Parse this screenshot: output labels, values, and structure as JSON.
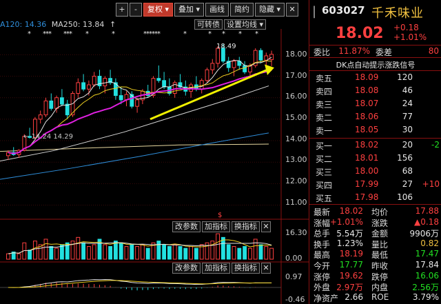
{
  "toolbar": {
    "buttons": [
      "+",
      "-",
      "复权",
      "叠加",
      "画线",
      "简约",
      "隐藏"
    ],
    "restore_label": "复权",
    "zoom_in": "+",
    "zoom_out": "-",
    "overlay_label": "叠加",
    "draw_label": "画线",
    "simple_label": "简约",
    "hide_label": "隐藏"
  },
  "ma_legend": {
    "ma120": "A120: 14.36",
    "ma250": "MA250: 13.84",
    "ma250_arrow": "↑"
  },
  "sub_buttons": {
    "turnover": "可转债",
    "set_ma": "设置均线"
  },
  "chart_labels": {
    "high_price": "18.49",
    "low_price": "14.29",
    "low_prefix": "←"
  },
  "price_axis": [
    "18.00",
    "17.00",
    "16.00",
    "15.00",
    "14.00",
    "13.00",
    "12.00",
    "11.00"
  ],
  "volume_axis": [
    "16.30",
    "0.00"
  ],
  "macd_axis": [
    "0.97",
    "-0.46"
  ],
  "panel_buttons": {
    "change_params": "改参数",
    "add_indicator": "加指标",
    "swap_indicator": "换指标",
    "close": "✕"
  },
  "stock": {
    "code": "603027",
    "name": "千禾味业",
    "price": "18.02",
    "change": "+0.18",
    "change_pct": "+1.01%"
  },
  "weibi": {
    "label": "委比",
    "value": "11.87%",
    "label2": "委差",
    "value2": "80"
  },
  "signal": "DK点自动提示涨跌信号",
  "order_book": {
    "asks": [
      {
        "label": "卖五",
        "price": "18.09",
        "vol": "120",
        "chg": ""
      },
      {
        "label": "卖四",
        "price": "18.08",
        "vol": "46",
        "chg": ""
      },
      {
        "label": "卖三",
        "price": "18.07",
        "vol": "24",
        "chg": ""
      },
      {
        "label": "卖二",
        "price": "18.06",
        "vol": "77",
        "chg": ""
      },
      {
        "label": "卖一",
        "price": "18.05",
        "vol": "30",
        "chg": ""
      }
    ],
    "bids": [
      {
        "label": "买一",
        "price": "18.02",
        "vol": "20",
        "chg": "-2"
      },
      {
        "label": "买二",
        "price": "18.01",
        "vol": "156",
        "chg": ""
      },
      {
        "label": "买三",
        "price": "18.00",
        "vol": "68",
        "chg": ""
      },
      {
        "label": "买四",
        "price": "17.99",
        "vol": "27",
        "chg": "+10"
      },
      {
        "label": "买五",
        "price": "17.98",
        "vol": "106",
        "chg": ""
      }
    ]
  },
  "stats": [
    {
      "l1": "最新",
      "v1": "18.02",
      "c1": "red",
      "l2": "均价",
      "v2": "17.88",
      "c2": "red"
    },
    {
      "l1": "涨幅",
      "v1": "+1.01%",
      "c1": "red",
      "l2": "涨跌",
      "v2": "▲0.18",
      "c2": "red"
    },
    {
      "l1": "总手",
      "v1": "5.54万",
      "c1": "white",
      "l2": "金额",
      "v2": "9906万",
      "c2": "white"
    },
    {
      "l1": "换手",
      "v1": "1.23%",
      "c1": "white",
      "l2": "量比",
      "v2": "0.82",
      "c2": "yellow"
    },
    {
      "l1": "最高",
      "v1": "18.19",
      "c1": "red",
      "l2": "最低",
      "v2": "17.47",
      "c2": "green"
    },
    {
      "l1": "今开",
      "v1": "17.77",
      "c1": "green",
      "l2": "昨收",
      "v2": "17.84",
      "c2": "white"
    },
    {
      "l1": "涨停",
      "v1": "19.62",
      "c1": "red",
      "l2": "跌停",
      "v2": "16.06",
      "c2": "green"
    },
    {
      "l1": "外盘",
      "v1": "2.97万",
      "c1": "red",
      "l2": "内盘",
      "v2": "2.56万",
      "c2": "green"
    },
    {
      "l1": "净资产",
      "v1": "2.66",
      "c1": "white",
      "l2": "ROE",
      "v2": "3.79%",
      "c2": "white"
    }
  ],
  "colors": {
    "up": "#ff4040",
    "down": "#22e0e0",
    "ma5": "#e8e8e8",
    "ma10": "#f0d020",
    "ma20": "#e020e0",
    "ma60": "#30c030",
    "ma120": "#2f8fdc",
    "ma250": "#e8d8a0",
    "trendline": "#f0f000",
    "border": "#8a1010"
  },
  "chart_data": {
    "type": "candlestick",
    "price_range": [
      10.6,
      19.2
    ],
    "candles": [
      [
        13.3,
        13.55,
        13.1,
        13.45
      ],
      [
        13.45,
        13.7,
        13.3,
        13.35
      ],
      [
        13.35,
        13.6,
        13.2,
        13.55
      ],
      [
        13.55,
        14.3,
        13.5,
        14.2
      ],
      [
        14.2,
        14.6,
        14.1,
        14.15
      ],
      [
        14.15,
        15.1,
        14.05,
        15.0
      ],
      [
        15.0,
        15.4,
        14.8,
        15.2
      ],
      [
        15.2,
        16.0,
        15.1,
        15.85
      ],
      [
        15.85,
        16.2,
        15.4,
        15.5
      ],
      [
        15.5,
        16.1,
        15.3,
        16.0
      ],
      [
        16.0,
        16.4,
        15.6,
        15.7
      ],
      [
        15.7,
        15.9,
        15.0,
        15.2
      ],
      [
        15.2,
        16.3,
        15.1,
        16.2
      ],
      [
        16.2,
        16.9,
        16.0,
        16.7
      ],
      [
        16.7,
        17.1,
        16.3,
        16.4
      ],
      [
        16.4,
        16.8,
        16.1,
        16.6
      ],
      [
        16.6,
        17.2,
        16.5,
        17.0
      ],
      [
        17.0,
        17.3,
        16.4,
        16.55
      ],
      [
        16.55,
        17.0,
        16.2,
        16.9
      ],
      [
        16.9,
        17.3,
        16.6,
        16.7
      ],
      [
        16.7,
        16.9,
        15.9,
        16.1
      ],
      [
        16.1,
        16.5,
        15.7,
        15.9
      ],
      [
        15.9,
        16.3,
        15.6,
        16.15
      ],
      [
        16.15,
        16.3,
        15.5,
        15.6
      ],
      [
        15.6,
        16.0,
        15.3,
        15.9
      ],
      [
        15.9,
        16.4,
        15.7,
        16.3
      ],
      [
        16.3,
        16.6,
        16.0,
        16.1
      ],
      [
        16.1,
        17.0,
        16.0,
        16.9
      ],
      [
        16.9,
        17.5,
        16.7,
        16.8
      ],
      [
        16.8,
        17.2,
        16.4,
        16.5
      ],
      [
        16.5,
        16.9,
        16.1,
        16.2
      ],
      [
        16.2,
        16.8,
        16.0,
        16.7
      ],
      [
        16.7,
        17.1,
        16.4,
        16.5
      ],
      [
        16.5,
        16.8,
        16.1,
        16.3
      ],
      [
        16.3,
        16.7,
        16.0,
        16.6
      ],
      [
        16.6,
        17.0,
        16.3,
        16.4
      ],
      [
        16.4,
        16.9,
        16.2,
        16.8
      ],
      [
        16.8,
        17.4,
        16.7,
        17.3
      ],
      [
        17.3,
        17.8,
        17.1,
        17.6
      ],
      [
        17.6,
        18.4,
        17.4,
        18.3
      ],
      [
        18.3,
        18.49,
        17.6,
        17.7
      ],
      [
        17.7,
        17.9,
        17.2,
        17.4
      ],
      [
        17.4,
        17.8,
        17.0,
        17.7
      ],
      [
        17.7,
        17.9,
        17.3,
        17.5
      ],
      [
        17.5,
        17.7,
        17.1,
        17.2
      ],
      [
        17.2,
        17.6,
        16.9,
        17.5
      ],
      [
        17.5,
        18.3,
        17.4,
        18.2
      ],
      [
        18.2,
        18.3,
        17.6,
        17.75
      ],
      [
        17.75,
        18.1,
        17.5,
        17.95
      ],
      [
        17.77,
        18.19,
        17.47,
        18.02
      ]
    ],
    "volumes": [
      3,
      4,
      3,
      9,
      5,
      10,
      8,
      11,
      7,
      6,
      8,
      9,
      10,
      12,
      9,
      7,
      8,
      11,
      8,
      7,
      10,
      9,
      7,
      8,
      7,
      8,
      6,
      9,
      10,
      8,
      7,
      8,
      7,
      6,
      7,
      6,
      8,
      9,
      10,
      14,
      12,
      8,
      7,
      6,
      7,
      6,
      11,
      8,
      7,
      6
    ],
    "ma120_value": 14.36,
    "ma250_value": 13.84,
    "high_label": 18.49,
    "low_label": 14.29
  }
}
